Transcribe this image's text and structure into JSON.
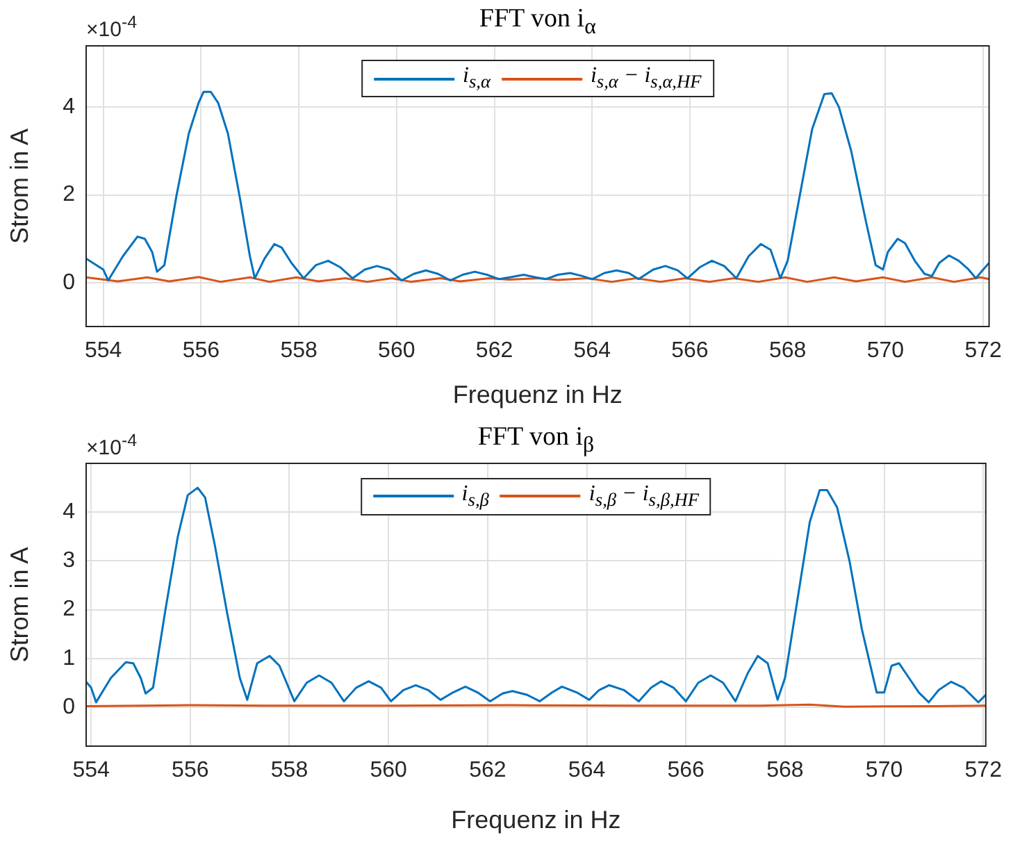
{
  "chart_data": [
    {
      "type": "line",
      "title": "FFT von i$_{α}$",
      "xlabel": "Frequenz in Hz",
      "ylabel": "Strom in A",
      "annotations": [
        "×10$^{-4}$"
      ],
      "xlim": [
        553.65,
        572.12
      ],
      "ylim": [
        -1,
        5.4
      ],
      "xticks": [
        554,
        556,
        558,
        560,
        562,
        564,
        566,
        568,
        570,
        572
      ],
      "yticks": [
        0,
        2,
        4
      ],
      "grid": true,
      "legend": "top",
      "marker": "none",
      "line_style": "solid",
      "series": [
        {
          "name": "i$_{s,α}$",
          "color": "#0072bd",
          "x": [
            553.65,
            554.0,
            554.1,
            554.4,
            554.7,
            554.85,
            555.0,
            555.1,
            555.25,
            555.5,
            555.75,
            555.95,
            556.05,
            556.2,
            556.35,
            556.55,
            556.8,
            557.0,
            557.1,
            557.3,
            557.5,
            557.65,
            557.85,
            558.1,
            558.35,
            558.6,
            558.85,
            559.1,
            559.35,
            559.6,
            559.85,
            560.1,
            560.35,
            560.6,
            560.85,
            561.1,
            561.35,
            561.6,
            561.85,
            562.1,
            562.35,
            562.6,
            562.85,
            563.05,
            563.3,
            563.55,
            563.8,
            564.0,
            564.25,
            564.5,
            564.75,
            564.95,
            565.25,
            565.5,
            565.75,
            565.95,
            566.2,
            566.45,
            566.7,
            566.95,
            567.2,
            567.45,
            567.65,
            567.85,
            568.0,
            568.25,
            568.5,
            568.75,
            568.9,
            569.05,
            569.3,
            569.6,
            569.8,
            569.95,
            570.05,
            570.25,
            570.4,
            570.6,
            570.8,
            570.95,
            571.1,
            571.3,
            571.5,
            571.7,
            571.85,
            572.0,
            572.12
          ],
          "values": [
            0.55,
            0.3,
            0.05,
            0.6,
            1.05,
            1.0,
            0.7,
            0.25,
            0.4,
            2.0,
            3.4,
            4.1,
            4.35,
            4.35,
            4.1,
            3.4,
            1.9,
            0.6,
            0.1,
            0.55,
            0.88,
            0.8,
            0.45,
            0.1,
            0.4,
            0.5,
            0.35,
            0.1,
            0.3,
            0.38,
            0.3,
            0.05,
            0.2,
            0.28,
            0.2,
            0.05,
            0.18,
            0.25,
            0.18,
            0.08,
            0.13,
            0.18,
            0.12,
            0.08,
            0.18,
            0.22,
            0.15,
            0.08,
            0.22,
            0.28,
            0.22,
            0.08,
            0.3,
            0.38,
            0.28,
            0.1,
            0.35,
            0.5,
            0.38,
            0.1,
            0.6,
            0.88,
            0.75,
            0.1,
            0.5,
            2.0,
            3.5,
            4.3,
            4.32,
            4.0,
            3.0,
            1.4,
            0.4,
            0.3,
            0.7,
            1.0,
            0.9,
            0.5,
            0.2,
            0.15,
            0.45,
            0.62,
            0.5,
            0.3,
            0.1,
            0.3,
            0.45
          ]
        },
        {
          "name": "i$_{s,α}$ − i$_{s,α,HF}$",
          "color": "#d95319",
          "x": [
            553.65,
            554.3,
            554.9,
            555.35,
            555.95,
            556.4,
            557.0,
            557.4,
            557.95,
            558.4,
            558.95,
            559.4,
            559.9,
            560.3,
            560.9,
            561.3,
            561.9,
            562.3,
            562.9,
            563.3,
            563.9,
            564.4,
            564.9,
            565.4,
            565.9,
            566.4,
            566.9,
            567.4,
            567.95,
            568.4,
            568.95,
            569.4,
            569.95,
            570.4,
            570.95,
            571.4,
            571.95,
            572.12
          ],
          "values": [
            0.12,
            0.03,
            0.12,
            0.03,
            0.13,
            0.02,
            0.12,
            0.02,
            0.12,
            0.03,
            0.1,
            0.02,
            0.1,
            0.02,
            0.1,
            0.03,
            0.1,
            0.07,
            0.1,
            0.06,
            0.1,
            0.02,
            0.1,
            0.02,
            0.1,
            0.02,
            0.1,
            0.02,
            0.12,
            0.02,
            0.12,
            0.03,
            0.12,
            0.02,
            0.12,
            0.02,
            0.12,
            0.08
          ]
        }
      ]
    },
    {
      "type": "line",
      "title": "FFT von i$_{β}$",
      "xlabel": "Frequenz in Hz",
      "ylabel": "Strom in A",
      "annotations": [
        "×10$^{-4}$"
      ],
      "xlim": [
        553.9,
        572.05
      ],
      "ylim": [
        -0.8,
        5
      ],
      "xticks": [
        554,
        556,
        558,
        560,
        562,
        564,
        566,
        568,
        570,
        572
      ],
      "yticks": [
        0,
        1,
        2,
        3,
        4
      ],
      "grid": true,
      "legend": "top",
      "marker": "none",
      "line_style": "solid",
      "series": [
        {
          "name": "i$_{s,β}$",
          "color": "#0072bd",
          "x": [
            553.9,
            554.0,
            554.1,
            554.4,
            554.7,
            554.85,
            555.0,
            555.1,
            555.25,
            555.5,
            555.75,
            555.95,
            556.15,
            556.3,
            556.5,
            556.75,
            557.0,
            557.15,
            557.35,
            557.6,
            557.8,
            558.1,
            558.35,
            558.6,
            558.85,
            559.1,
            559.35,
            559.6,
            559.85,
            560.05,
            560.3,
            560.55,
            560.8,
            561.05,
            561.3,
            561.55,
            561.8,
            562.05,
            562.3,
            562.5,
            562.8,
            563.05,
            563.3,
            563.5,
            563.8,
            564.05,
            564.25,
            564.45,
            564.75,
            565.05,
            565.3,
            565.5,
            565.75,
            566.0,
            566.25,
            566.5,
            566.75,
            567.0,
            567.25,
            567.45,
            567.65,
            567.85,
            568.0,
            568.25,
            568.5,
            568.7,
            568.85,
            569.05,
            569.3,
            569.55,
            569.85,
            570.0,
            570.15,
            570.3,
            570.5,
            570.7,
            570.9,
            571.1,
            571.35,
            571.6,
            571.9,
            572.05
          ],
          "values": [
            0.52,
            0.4,
            0.1,
            0.6,
            0.92,
            0.9,
            0.6,
            0.28,
            0.4,
            2.0,
            3.5,
            4.35,
            4.5,
            4.3,
            3.3,
            1.9,
            0.6,
            0.15,
            0.9,
            1.05,
            0.85,
            0.12,
            0.5,
            0.65,
            0.5,
            0.12,
            0.4,
            0.53,
            0.4,
            0.12,
            0.35,
            0.45,
            0.35,
            0.15,
            0.3,
            0.42,
            0.3,
            0.12,
            0.28,
            0.33,
            0.25,
            0.12,
            0.3,
            0.42,
            0.3,
            0.15,
            0.35,
            0.45,
            0.35,
            0.12,
            0.4,
            0.53,
            0.4,
            0.12,
            0.5,
            0.65,
            0.5,
            0.12,
            0.7,
            1.05,
            0.9,
            0.15,
            0.6,
            2.2,
            3.8,
            4.45,
            4.45,
            4.1,
            3.0,
            1.6,
            0.3,
            0.3,
            0.85,
            0.9,
            0.6,
            0.3,
            0.1,
            0.35,
            0.52,
            0.4,
            0.1,
            0.25
          ]
        },
        {
          "name": "i$_{s,β}$ − i$_{s,β,HF}$",
          "color": "#d95319",
          "x": [
            553.9,
            556.0,
            557.5,
            560.0,
            562.5,
            565.0,
            567.5,
            568.5,
            569.2,
            571.0,
            572.05
          ],
          "values": [
            0.02,
            0.04,
            0.03,
            0.03,
            0.04,
            0.03,
            0.03,
            0.05,
            0.01,
            0.02,
            0.03
          ]
        }
      ]
    }
  ]
}
